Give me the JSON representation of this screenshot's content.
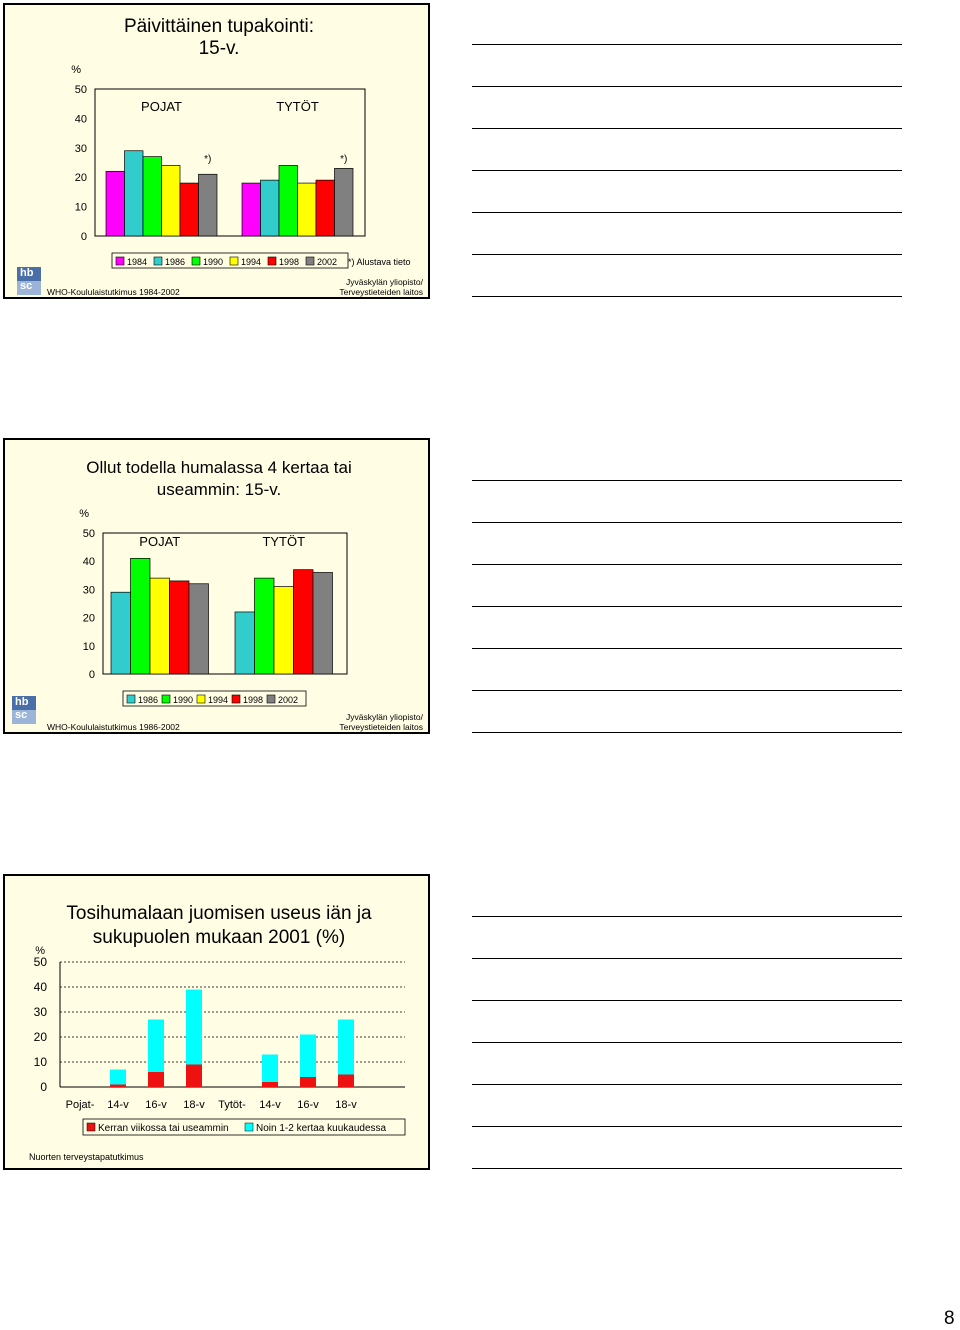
{
  "page_number": "8",
  "chart_data": [
    {
      "type": "bar",
      "title": "Päivittäinen tupakointi: 15-v.",
      "title_lines": [
        "Päivittäinen tupakointi:",
        "15-v."
      ],
      "ylabel": "%",
      "ylim": [
        0,
        50
      ],
      "yticks": [
        "0",
        "10",
        "20",
        "30",
        "40",
        "50"
      ],
      "groups": [
        "POJAT",
        "TYTÖT"
      ],
      "group_marks": [
        "*)",
        "*)"
      ],
      "series": [
        {
          "name": "1984",
          "color": "#ff00ff",
          "values": [
            22,
            18
          ]
        },
        {
          "name": "1986",
          "color": "#33cccc",
          "values": [
            29,
            19
          ]
        },
        {
          "name": "1990",
          "color": "#00ff00",
          "values": [
            27,
            24
          ]
        },
        {
          "name": "1994",
          "color": "#ffff00",
          "values": [
            24,
            18
          ]
        },
        {
          "name": "1998",
          "color": "#ff0000",
          "values": [
            18,
            19
          ]
        },
        {
          "name": "2002",
          "color": "#808080",
          "values": [
            21,
            23
          ]
        }
      ],
      "note": "*) Alustava tieto",
      "source_left": "WHO-Koululaistutkimus 1984-2002",
      "source_right": [
        "Jyväskylän yliopisto/",
        "Terveystieteiden laitos"
      ]
    },
    {
      "type": "bar",
      "title": "Ollut todella humalassa 4 kertaa tai useammin: 15-v.",
      "title_lines": [
        "Ollut todella humalassa 4 kertaa tai",
        "useammin: 15-v."
      ],
      "ylabel": "%",
      "ylim": [
        0,
        50
      ],
      "yticks": [
        "0",
        "10",
        "20",
        "30",
        "40",
        "50"
      ],
      "groups": [
        "POJAT",
        "TYTÖT"
      ],
      "series": [
        {
          "name": "1986",
          "color": "#33cccc",
          "values": [
            29,
            22
          ]
        },
        {
          "name": "1990",
          "color": "#00ff00",
          "values": [
            41,
            34
          ]
        },
        {
          "name": "1994",
          "color": "#ffff00",
          "values": [
            34,
            31
          ]
        },
        {
          "name": "1998",
          "color": "#ff0000",
          "values": [
            33,
            37
          ]
        },
        {
          "name": "2002",
          "color": "#808080",
          "values": [
            32,
            36
          ]
        }
      ],
      "source_left": "WHO-Koululaistutkimus 1986-2002",
      "source_right": [
        "Jyväskylän yliopisto/",
        "Terveystieteiden laitos"
      ]
    },
    {
      "type": "bar",
      "stacked": true,
      "title": "Tosihumalaan juomisen useus iän ja sukupuolen mukaan 2001 (%)",
      "title_lines": [
        "Tosihumalaan juomisen useus iän ja",
        "sukupuolen mukaan 2001 (%)"
      ],
      "ylabel": "%",
      "ylim": [
        0,
        50
      ],
      "yticks": [
        "0",
        "10",
        "20",
        "30",
        "40",
        "50"
      ],
      "categories": [
        "Pojat-",
        "14-v",
        "16-v",
        "18-v",
        "Tytöt-",
        "14-v",
        "16-v",
        "18-v"
      ],
      "series": [
        {
          "name": "Kerran viikossa tai useammin",
          "color": "#ee1111",
          "values": [
            null,
            1,
            6,
            9,
            null,
            2,
            4,
            5
          ]
        },
        {
          "name": "Noin 1-2 kertaa kuukaudessa",
          "color": "#00ffff",
          "values": [
            null,
            6,
            21,
            30,
            null,
            11,
            17,
            22
          ]
        }
      ],
      "source_left": "Nuorten terveystapatutkimus"
    }
  ]
}
